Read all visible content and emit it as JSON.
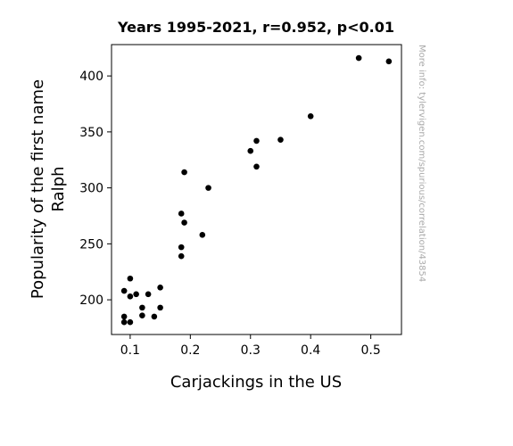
{
  "chart_data": {
    "type": "scatter",
    "title": "Years 1995-2021, r=0.952, p<0.01",
    "xlabel": "Carjackings in the US",
    "ylabel_lines": [
      "Popularity of the first name",
      "Ralph"
    ],
    "xlim": [
      0.069,
      0.551
    ],
    "ylim": [
      169,
      428
    ],
    "x_ticks": [
      0.1,
      0.2,
      0.3,
      0.4,
      0.5
    ],
    "x_tick_labels": [
      "0.1",
      "0.2",
      "0.3",
      "0.4",
      "0.5"
    ],
    "y_ticks": [
      200,
      250,
      300,
      350,
      400
    ],
    "y_tick_labels": [
      "200",
      "250",
      "300",
      "350",
      "400"
    ],
    "grid": false,
    "point_color": "#000000",
    "points": [
      {
        "x": 0.09,
        "y": 208
      },
      {
        "x": 0.09,
        "y": 185
      },
      {
        "x": 0.09,
        "y": 180
      },
      {
        "x": 0.1,
        "y": 219
      },
      {
        "x": 0.1,
        "y": 203
      },
      {
        "x": 0.1,
        "y": 180
      },
      {
        "x": 0.11,
        "y": 205
      },
      {
        "x": 0.12,
        "y": 193
      },
      {
        "x": 0.12,
        "y": 186
      },
      {
        "x": 0.13,
        "y": 205
      },
      {
        "x": 0.14,
        "y": 185
      },
      {
        "x": 0.15,
        "y": 211
      },
      {
        "x": 0.15,
        "y": 193
      },
      {
        "x": 0.185,
        "y": 277
      },
      {
        "x": 0.185,
        "y": 247
      },
      {
        "x": 0.185,
        "y": 239
      },
      {
        "x": 0.19,
        "y": 314
      },
      {
        "x": 0.19,
        "y": 269
      },
      {
        "x": 0.22,
        "y": 258
      },
      {
        "x": 0.23,
        "y": 300
      },
      {
        "x": 0.3,
        "y": 333
      },
      {
        "x": 0.31,
        "y": 342
      },
      {
        "x": 0.31,
        "y": 319
      },
      {
        "x": 0.35,
        "y": 343
      },
      {
        "x": 0.4,
        "y": 364
      },
      {
        "x": 0.48,
        "y": 416
      },
      {
        "x": 0.53,
        "y": 413
      }
    ]
  },
  "watermark": "More info: tylervigen.com/spurious/correlation/43854"
}
